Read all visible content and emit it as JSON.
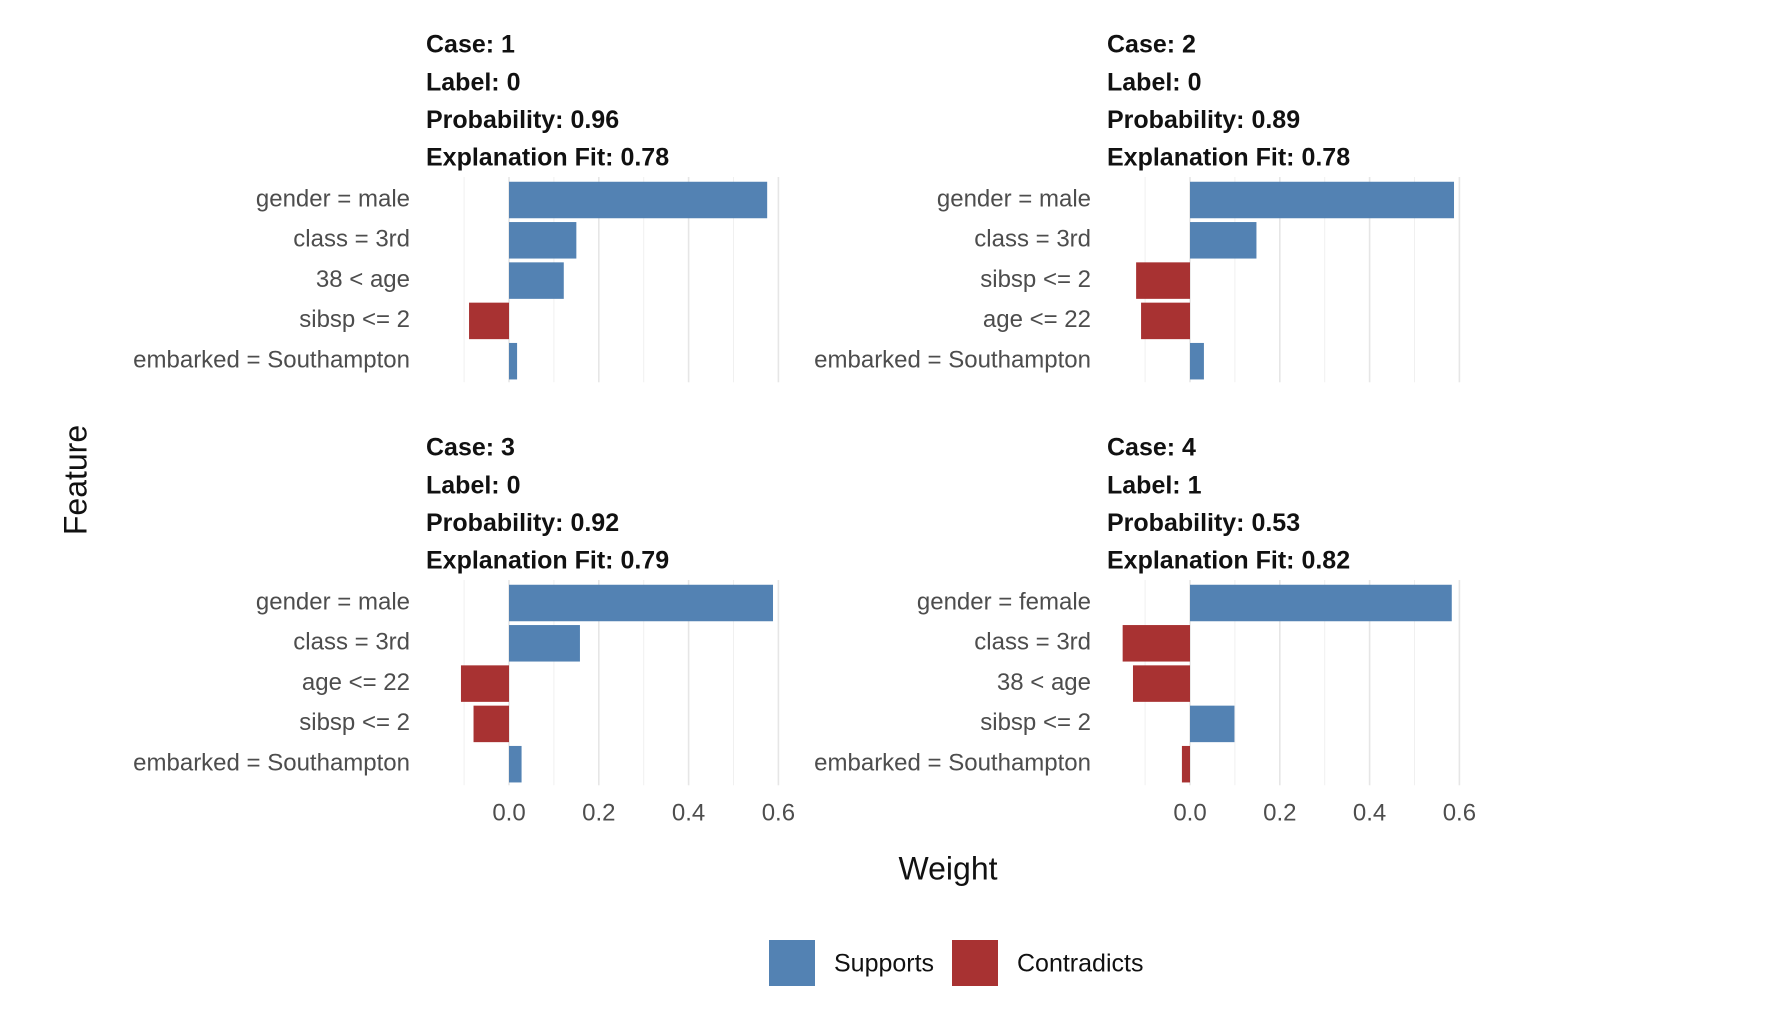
{
  "chart_data": {
    "type": "bar",
    "orientation": "horizontal",
    "xlabel": "Weight",
    "ylabel": "Feature",
    "xlim": [
      -0.125,
      0.61
    ],
    "xticks": [
      {
        "value": 0,
        "label": "0.0"
      },
      0.2,
      0.4,
      0.6
    ],
    "xminorticks": [
      -0.1,
      0.1,
      0.3,
      0.5
    ],
    "grid": true,
    "legend": [
      {
        "name": "Supports",
        "color": "#5382b3"
      },
      {
        "name": "Contradicts",
        "color": "#a83232"
      }
    ],
    "legend_position": "bottom",
    "panels": [
      {
        "title_lines": [
          "Case: 1",
          "Label: 0",
          "Probability: 0.96",
          "Explanation Fit: 0.78"
        ],
        "categories": [
          "gender = male",
          "class = 3rd",
          "38 < age",
          "sibsp <= 2",
          "embarked = Southampton"
        ],
        "values": [
          0.575,
          0.15,
          0.122,
          -0.089,
          0.018
        ]
      },
      {
        "title_lines": [
          "Case: 2",
          "Label: 0",
          "Probability: 0.89",
          "Explanation Fit: 0.78"
        ],
        "categories": [
          "gender = male",
          "class = 3rd",
          "sibsp <= 2",
          "age <= 22",
          "embarked = Southampton"
        ],
        "values": [
          0.588,
          0.148,
          -0.12,
          -0.109,
          0.031
        ]
      },
      {
        "title_lines": [
          "Case: 3",
          "Label: 0",
          "Probability: 0.92",
          "Explanation Fit: 0.79"
        ],
        "categories": [
          "gender = male",
          "class = 3rd",
          "age <= 22",
          "sibsp <= 2",
          "embarked = Southampton"
        ],
        "values": [
          0.588,
          0.158,
          -0.107,
          -0.079,
          0.028
        ]
      },
      {
        "title_lines": [
          "Case: 4",
          "Label: 1",
          "Probability: 0.53",
          "Explanation Fit: 0.82"
        ],
        "categories": [
          "gender = female",
          "class = 3rd",
          "38 < age",
          "sibsp <= 2",
          "embarked = Southampton"
        ],
        "values": [
          0.583,
          -0.15,
          -0.127,
          0.099,
          -0.018
        ]
      }
    ]
  }
}
